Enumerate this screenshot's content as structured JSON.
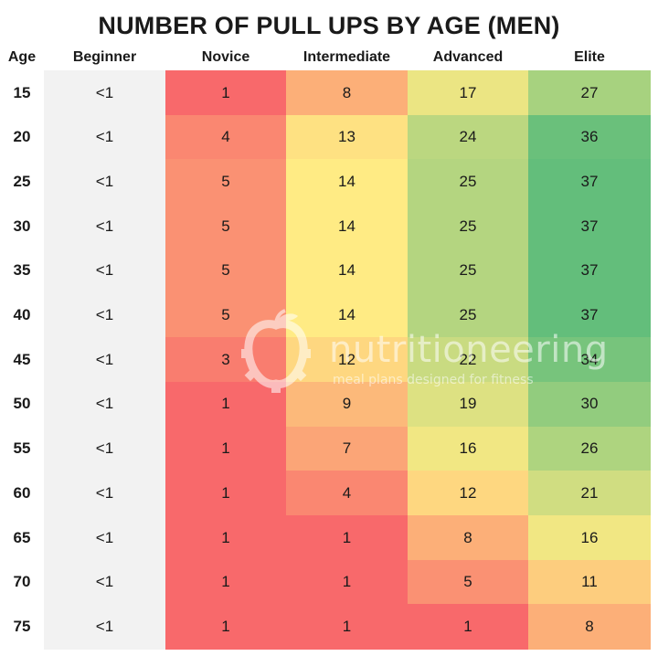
{
  "chart_data": {
    "type": "table",
    "title": "NUMBER OF PULL UPS BY AGE (MEN)",
    "columns": [
      "Age",
      "Beginner",
      "Novice",
      "Intermediate",
      "Advanced",
      "Elite"
    ],
    "rows": [
      {
        "age": "15",
        "values": [
          "<1",
          "1",
          "8",
          "17",
          "27"
        ]
      },
      {
        "age": "20",
        "values": [
          "<1",
          "4",
          "13",
          "24",
          "36"
        ]
      },
      {
        "age": "25",
        "values": [
          "<1",
          "5",
          "14",
          "25",
          "37"
        ]
      },
      {
        "age": "30",
        "values": [
          "<1",
          "5",
          "14",
          "25",
          "37"
        ]
      },
      {
        "age": "35",
        "values": [
          "<1",
          "5",
          "14",
          "25",
          "37"
        ]
      },
      {
        "age": "40",
        "values": [
          "<1",
          "5",
          "14",
          "25",
          "37"
        ]
      },
      {
        "age": "45",
        "values": [
          "<1",
          "3",
          "12",
          "22",
          "34"
        ]
      },
      {
        "age": "50",
        "values": [
          "<1",
          "1",
          "9",
          "19",
          "30"
        ]
      },
      {
        "age": "55",
        "values": [
          "<1",
          "1",
          "7",
          "16",
          "26"
        ]
      },
      {
        "age": "60",
        "values": [
          "<1",
          "1",
          "4",
          "12",
          "21"
        ]
      },
      {
        "age": "65",
        "values": [
          "<1",
          "1",
          "1",
          "8",
          "16"
        ]
      },
      {
        "age": "70",
        "values": [
          "<1",
          "1",
          "1",
          "5",
          "11"
        ]
      },
      {
        "age": "75",
        "values": [
          "<1",
          "1",
          "1",
          "1",
          "8"
        ]
      }
    ],
    "color_scale": {
      "low": "#f8696b",
      "mid": "#ffeb84",
      "high": "#63be7b"
    },
    "beginner_color": "#f2f2f2"
  },
  "watermark": {
    "brand": "nutritioneering",
    "tagline": "meal plans designed for fitness",
    "icon": "apple-gear-icon"
  }
}
